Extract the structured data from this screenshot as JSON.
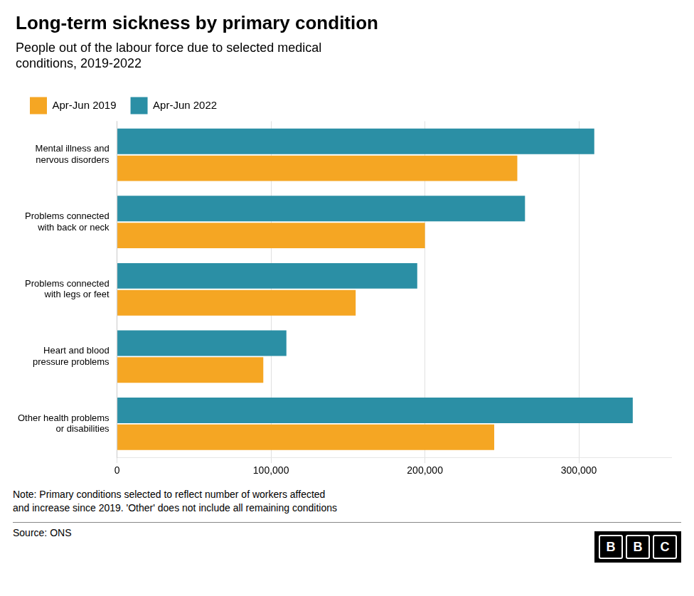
{
  "chart_data": {
    "type": "bar",
    "orientation": "horizontal",
    "title": "Long-term sickness by primary condition",
    "subtitle": "People out of the labour force due to selected medical\nconditions, 2019-2022",
    "categories": [
      "Mental illness and\nnervous disorders",
      "Problems connected\nwith back or neck",
      "Problems connected\nwith legs or feet",
      "Heart and blood\npressure problems",
      "Other health problems\nor disabilities"
    ],
    "series": [
      {
        "name": "Apr-Jun 2022",
        "color": "#2B8FA5",
        "values": [
          310000,
          265000,
          195000,
          110000,
          335000
        ]
      },
      {
        "name": "Apr-Jun 2019",
        "color": "#F5A623",
        "values": [
          260000,
          200000,
          155000,
          95000,
          245000
        ]
      }
    ],
    "xlim": [
      0,
      360000
    ],
    "xticks": [
      0,
      {
        "value": 100000,
        "label": "100,000"
      },
      {
        "value": 200000,
        "label": "200,000"
      },
      {
        "value": 300000,
        "label": "300,000"
      }
    ],
    "grid": true,
    "legend": "upper left",
    "note": "Note: Primary conditions selected to reflect number of workers affected\nand increase since 2019. 'Other' does not include all remaining conditions",
    "source": "Source: ONS",
    "logo": "BBC"
  }
}
